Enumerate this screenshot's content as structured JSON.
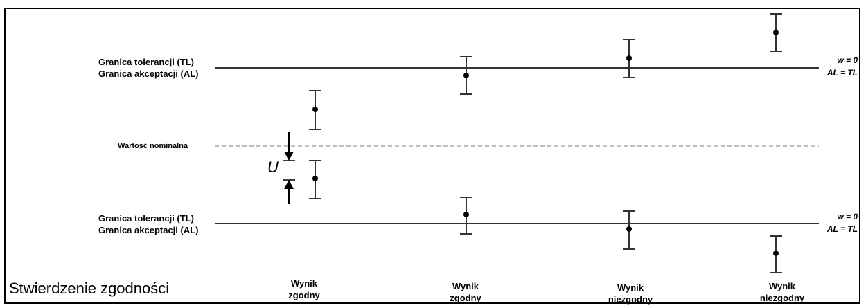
{
  "upper_limit": {
    "tl_label": "Granica tolerancji (TL)",
    "al_label": "Granica akceptacji (AL)",
    "w_label": "w = 0",
    "al_tl_label": "AL = TL"
  },
  "lower_limit": {
    "tl_label": "Granica tolerancji (TL)",
    "al_label": "Granica akceptacji (AL)",
    "w_label": "w = 0",
    "al_tl_label": "AL = TL"
  },
  "nominal_label": "Wartość nominalna",
  "uncertainty_symbol": "U",
  "caption": "Stwierdzenie zgodności",
  "verdicts": [
    {
      "line1": "Wynik",
      "line2": "zgodny"
    },
    {
      "line1": "Wynik",
      "line2": "zgodny"
    },
    {
      "line1": "Wynik",
      "line2": "niezgodny"
    },
    {
      "line1": "Wynik",
      "line2": "niezgodny"
    }
  ],
  "colors": {
    "line": "#333333",
    "dashed": "#aaaaaa",
    "marker": "#000000"
  }
}
